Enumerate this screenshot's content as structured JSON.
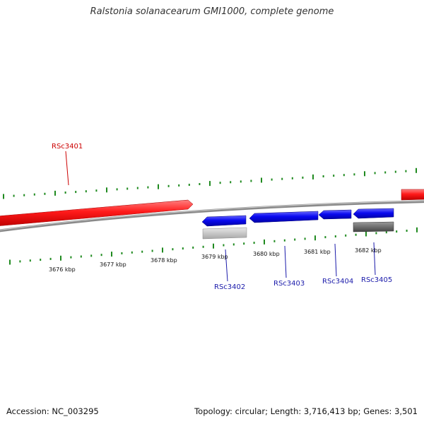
{
  "title": "Ralstonia solanacearum GMI1000, complete genome",
  "footer": {
    "accession": "Accession: NC_003295",
    "summary": "Topology: circular; Length: 3,716,413 bp; Genes: 3,501"
  },
  "colors": {
    "forward_gene": "#ff2020",
    "reverse_gene": "#0a0af0",
    "rna_gene_light": "#c8c8c8",
    "rna_gene_dark": "#666666",
    "backbone": "#8a8a8a",
    "tick": "#1f8a1f",
    "forward_label": "#cc0000",
    "reverse_label": "#1a1aaa"
  },
  "scale_labels": [
    "3676 kbp",
    "3677 kbp",
    "3678 kbp",
    "3679 kbp",
    "3680 kbp",
    "3681 kbp",
    "3682 kbp"
  ],
  "genes": [
    {
      "label": "RSc3401",
      "strand": "forward"
    },
    {
      "label": "RSc3402",
      "strand": "reverse"
    },
    {
      "label": "RSc3403",
      "strand": "reverse"
    },
    {
      "label": "RSc3404",
      "strand": "reverse"
    },
    {
      "label": "RSc3405",
      "strand": "reverse"
    }
  ]
}
